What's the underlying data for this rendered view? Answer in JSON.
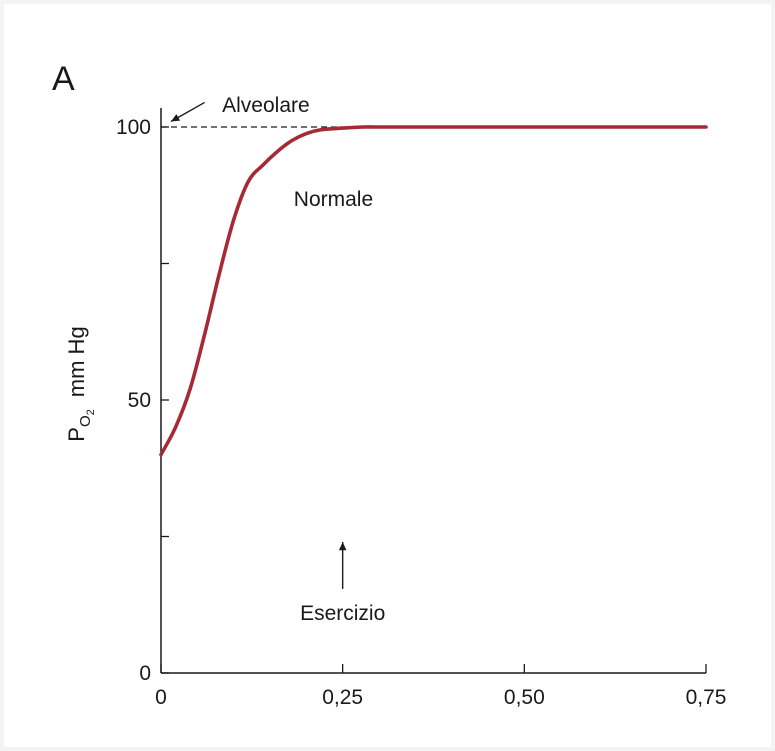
{
  "panel_label": "A",
  "chart_data": {
    "type": "line",
    "title": "",
    "xlabel": "",
    "ylabel_main": "P",
    "ylabel_sub": "O",
    "ylabel_subsub": "2",
    "ylabel_unit": "mm Hg",
    "xlim": [
      0,
      0.75
    ],
    "ylim": [
      0,
      100
    ],
    "x_ticks": [
      0,
      0.25,
      0.5,
      0.75
    ],
    "x_tick_labels": [
      "0",
      "0,25",
      "0,50",
      "0,75"
    ],
    "y_ticks": [
      0,
      25,
      50,
      75,
      100
    ],
    "y_tick_labels": [
      "0",
      "",
      "50",
      "",
      "100"
    ],
    "grid": false,
    "series": [
      {
        "name": "Normale",
        "color": "#a52a35",
        "x": [
          0,
          0.02,
          0.04,
          0.06,
          0.08,
          0.1,
          0.12,
          0.14,
          0.16,
          0.18,
          0.2,
          0.22,
          0.25,
          0.28,
          0.3,
          0.4,
          0.5,
          0.6,
          0.75
        ],
        "y": [
          40,
          45,
          52,
          62,
          73,
          83,
          90,
          93,
          95.5,
          97.5,
          98.8,
          99.5,
          99.8,
          100,
          100,
          100,
          100,
          100,
          100
        ]
      }
    ],
    "reference_lines": [
      {
        "type": "horizontal",
        "y": 100,
        "x_range": [
          0,
          0.25
        ],
        "style": "dashed"
      }
    ],
    "annotations": [
      {
        "text": "Alveolare",
        "x": 0.08,
        "y": 104,
        "arrow_to": [
          0,
          101
        ]
      },
      {
        "text": "Normale",
        "x": 0.18,
        "y": 87
      },
      {
        "text": "Esercizio",
        "x": 0.25,
        "y": 11,
        "arrow_to": [
          0.25,
          24
        ]
      }
    ]
  }
}
